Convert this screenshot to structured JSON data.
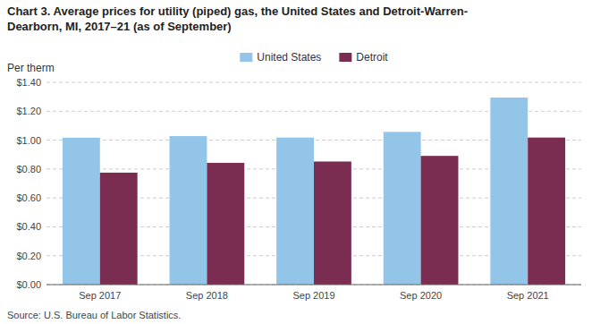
{
  "chart_data": {
    "type": "bar",
    "title": "Chart 3. Average prices for utility (piped) gas, the United States and Detroit-Warren-\nDearborn, MI, 2017–21 (as of September)",
    "y_label": "Per therm",
    "source": "Source: U.S. Bureau of Labor Statistics.",
    "categories": [
      "Sep 2017",
      "Sep 2018",
      "Sep 2019",
      "Sep 2020",
      "Sep 2021"
    ],
    "series": [
      {
        "name": "United States",
        "color": "#92C5E8",
        "values": [
          1.017,
          1.028,
          1.018,
          1.057,
          1.295
        ]
      },
      {
        "name": "Detroit",
        "color": "#7B2D51",
        "values": [
          0.775,
          0.843,
          0.852,
          0.891,
          1.018
        ]
      }
    ],
    "ylim": [
      0,
      1.4
    ],
    "yticks": [
      {
        "value": 0.0,
        "label": "$0.00"
      },
      {
        "value": 0.2,
        "label": "$0.20"
      },
      {
        "value": 0.4,
        "label": "$0.40"
      },
      {
        "value": 0.6,
        "label": "$0.60"
      },
      {
        "value": 0.8,
        "label": "$0.80"
      },
      {
        "value": 1.0,
        "label": "$1.00"
      },
      {
        "value": 1.2,
        "label": "$1.20"
      },
      {
        "value": 1.4,
        "label": "$1.40"
      }
    ],
    "grid": true,
    "legend": "top"
  }
}
